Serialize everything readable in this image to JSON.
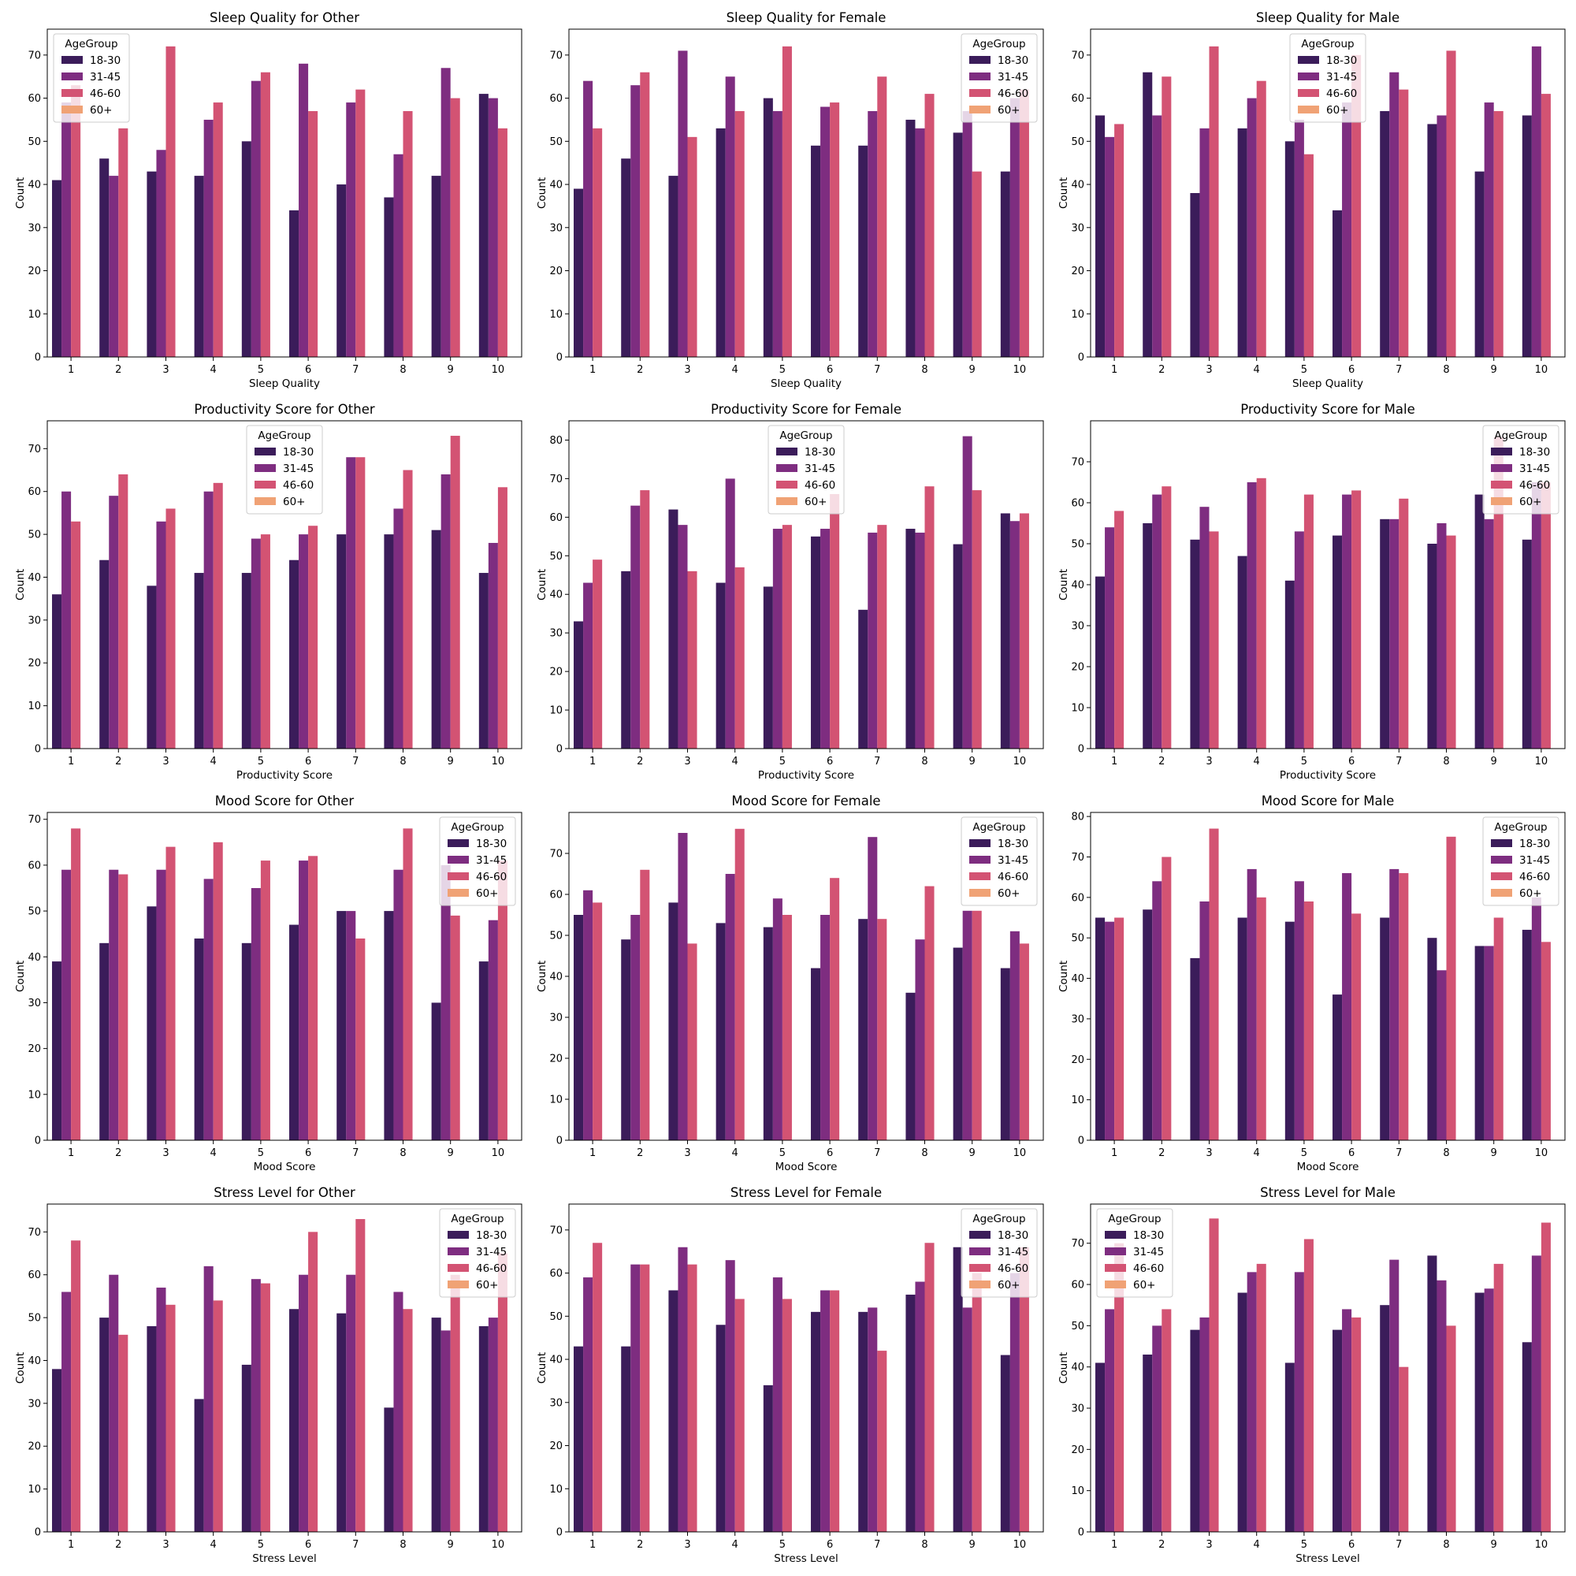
{
  "palette": {
    "18-30": "#3b1c5a",
    "31-45": "#7e2d80",
    "46-60": "#d35373",
    "60+": "#f0a275"
  },
  "legend_title": "AgeGroup",
  "age_groups": [
    "18-30",
    "31-45",
    "46-60",
    "60+"
  ],
  "chart_data": [
    {
      "type": "bar",
      "title": "Sleep Quality for Other",
      "xlabel": "Sleep Quality",
      "ylabel": "Count",
      "categories": [
        "1",
        "2",
        "3",
        "4",
        "5",
        "6",
        "7",
        "8",
        "9",
        "10"
      ],
      "ylim": [
        0,
        76
      ],
      "yticks": [
        0,
        10,
        20,
        30,
        40,
        50,
        60,
        70
      ],
      "legend": "top-left",
      "series": [
        {
          "name": "18-30",
          "values": [
            41,
            46,
            43,
            42,
            50,
            34,
            40,
            37,
            42,
            61
          ]
        },
        {
          "name": "31-45",
          "values": [
            59,
            42,
            48,
            55,
            64,
            68,
            59,
            47,
            67,
            60
          ]
        },
        {
          "name": "46-60",
          "values": [
            63,
            53,
            72,
            59,
            66,
            57,
            62,
            57,
            60,
            53
          ]
        },
        {
          "name": "60+",
          "values": [
            0,
            0,
            0,
            0,
            0,
            0,
            0,
            0,
            0,
            0
          ]
        }
      ]
    },
    {
      "type": "bar",
      "title": "Sleep Quality for Female",
      "xlabel": "Sleep Quality",
      "ylabel": "Count",
      "categories": [
        "1",
        "2",
        "3",
        "4",
        "5",
        "6",
        "7",
        "8",
        "9",
        "10"
      ],
      "ylim": [
        0,
        76
      ],
      "yticks": [
        0,
        10,
        20,
        30,
        40,
        50,
        60,
        70
      ],
      "legend": "top-right",
      "series": [
        {
          "name": "18-30",
          "values": [
            39,
            46,
            42,
            53,
            60,
            49,
            49,
            55,
            52,
            43
          ]
        },
        {
          "name": "31-45",
          "values": [
            64,
            63,
            71,
            65,
            57,
            58,
            57,
            53,
            57,
            60
          ]
        },
        {
          "name": "46-60",
          "values": [
            53,
            66,
            51,
            57,
            72,
            59,
            65,
            61,
            43,
            62
          ]
        },
        {
          "name": "60+",
          "values": [
            0,
            0,
            0,
            0,
            0,
            0,
            0,
            0,
            0,
            0
          ]
        }
      ]
    },
    {
      "type": "bar",
      "title": "Sleep Quality for Male",
      "xlabel": "Sleep Quality",
      "ylabel": "Count",
      "categories": [
        "1",
        "2",
        "3",
        "4",
        "5",
        "6",
        "7",
        "8",
        "9",
        "10"
      ],
      "ylim": [
        0,
        76
      ],
      "yticks": [
        0,
        10,
        20,
        30,
        40,
        50,
        60,
        70
      ],
      "legend": "top-center",
      "series": [
        {
          "name": "18-30",
          "values": [
            56,
            66,
            38,
            53,
            50,
            34,
            57,
            54,
            43,
            56
          ]
        },
        {
          "name": "31-45",
          "values": [
            51,
            56,
            53,
            60,
            55,
            59,
            66,
            56,
            59,
            72
          ]
        },
        {
          "name": "46-60",
          "values": [
            54,
            65,
            72,
            64,
            47,
            70,
            62,
            71,
            57,
            61
          ]
        },
        {
          "name": "60+",
          "values": [
            0,
            0,
            0,
            0,
            0,
            0,
            0,
            0,
            0,
            0
          ]
        }
      ]
    },
    {
      "type": "bar",
      "title": "Productivity Score for Other",
      "xlabel": "Productivity Score",
      "ylabel": "Count",
      "categories": [
        "1",
        "2",
        "3",
        "4",
        "5",
        "6",
        "7",
        "8",
        "9",
        "10"
      ],
      "ylim": [
        0,
        76.5
      ],
      "yticks": [
        0,
        10,
        20,
        30,
        40,
        50,
        60,
        70
      ],
      "legend": "top-center",
      "series": [
        {
          "name": "18-30",
          "values": [
            36,
            44,
            38,
            41,
            41,
            44,
            50,
            50,
            51,
            41
          ]
        },
        {
          "name": "31-45",
          "values": [
            60,
            59,
            53,
            60,
            49,
            50,
            68,
            56,
            64,
            48
          ]
        },
        {
          "name": "46-60",
          "values": [
            53,
            64,
            56,
            62,
            50,
            52,
            68,
            65,
            73,
            61
          ]
        },
        {
          "name": "60+",
          "values": [
            0,
            0,
            0,
            0,
            0,
            0,
            0,
            0,
            0,
            0
          ]
        }
      ]
    },
    {
      "type": "bar",
      "title": "Productivity Score for Female",
      "xlabel": "Productivity Score",
      "ylabel": "Count",
      "categories": [
        "1",
        "2",
        "3",
        "4",
        "5",
        "6",
        "7",
        "8",
        "9",
        "10"
      ],
      "ylim": [
        0,
        85
      ],
      "yticks": [
        0,
        10,
        20,
        30,
        40,
        50,
        60,
        70,
        80
      ],
      "legend": "top-center",
      "series": [
        {
          "name": "18-30",
          "values": [
            33,
            46,
            62,
            43,
            42,
            55,
            36,
            57,
            53,
            61
          ]
        },
        {
          "name": "31-45",
          "values": [
            43,
            63,
            58,
            70,
            57,
            57,
            56,
            56,
            81,
            59
          ]
        },
        {
          "name": "46-60",
          "values": [
            49,
            67,
            46,
            47,
            58,
            66,
            58,
            68,
            67,
            61
          ]
        },
        {
          "name": "60+",
          "values": [
            0,
            0,
            0,
            0,
            0,
            0,
            0,
            0,
            0,
            0
          ]
        }
      ]
    },
    {
      "type": "bar",
      "title": "Productivity Score for Male",
      "xlabel": "Productivity Score",
      "ylabel": "Count",
      "categories": [
        "1",
        "2",
        "3",
        "4",
        "5",
        "6",
        "7",
        "8",
        "9",
        "10"
      ],
      "ylim": [
        0,
        80
      ],
      "yticks": [
        0,
        10,
        20,
        30,
        40,
        50,
        60,
        70
      ],
      "legend": "top-right",
      "series": [
        {
          "name": "18-30",
          "values": [
            42,
            55,
            51,
            47,
            41,
            52,
            56,
            50,
            62,
            51
          ]
        },
        {
          "name": "31-45",
          "values": [
            54,
            62,
            59,
            65,
            53,
            62,
            56,
            55,
            56,
            65
          ]
        },
        {
          "name": "46-60",
          "values": [
            58,
            64,
            53,
            66,
            62,
            63,
            61,
            52,
            76,
            65
          ]
        },
        {
          "name": "60+",
          "values": [
            0,
            0,
            0,
            0,
            0,
            0,
            0,
            0,
            0,
            0
          ]
        }
      ]
    },
    {
      "type": "bar",
      "title": "Mood Score for Other",
      "xlabel": "Mood Score",
      "ylabel": "Count",
      "categories": [
        "1",
        "2",
        "3",
        "4",
        "5",
        "6",
        "7",
        "8",
        "9",
        "10"
      ],
      "ylim": [
        0,
        71.5
      ],
      "yticks": [
        0,
        10,
        20,
        30,
        40,
        50,
        60,
        70
      ],
      "legend": "top-right",
      "series": [
        {
          "name": "18-30",
          "values": [
            39,
            43,
            51,
            44,
            43,
            47,
            50,
            50,
            30,
            39
          ]
        },
        {
          "name": "31-45",
          "values": [
            59,
            59,
            59,
            57,
            55,
            61,
            50,
            59,
            60,
            48
          ]
        },
        {
          "name": "46-60",
          "values": [
            68,
            58,
            64,
            65,
            61,
            62,
            44,
            68,
            49,
            61
          ]
        },
        {
          "name": "60+",
          "values": [
            0,
            0,
            0,
            0,
            0,
            0,
            0,
            0,
            0,
            0
          ]
        }
      ]
    },
    {
      "type": "bar",
      "title": "Mood Score for Female",
      "xlabel": "Mood Score",
      "ylabel": "Count",
      "categories": [
        "1",
        "2",
        "3",
        "4",
        "5",
        "6",
        "7",
        "8",
        "9",
        "10"
      ],
      "ylim": [
        0,
        80
      ],
      "yticks": [
        0,
        10,
        20,
        30,
        40,
        50,
        60,
        70
      ],
      "legend": "top-right",
      "series": [
        {
          "name": "18-30",
          "values": [
            55,
            49,
            58,
            53,
            52,
            42,
            54,
            36,
            47,
            42
          ]
        },
        {
          "name": "31-45",
          "values": [
            61,
            55,
            75,
            65,
            59,
            55,
            74,
            49,
            56,
            51
          ]
        },
        {
          "name": "46-60",
          "values": [
            58,
            66,
            48,
            76,
            55,
            64,
            54,
            62,
            56,
            48
          ]
        },
        {
          "name": "60+",
          "values": [
            0,
            0,
            0,
            0,
            0,
            0,
            0,
            0,
            0,
            0
          ]
        }
      ]
    },
    {
      "type": "bar",
      "title": "Mood Score for Male",
      "xlabel": "Mood Score",
      "ylabel": "Count",
      "categories": [
        "1",
        "2",
        "3",
        "4",
        "5",
        "6",
        "7",
        "8",
        "9",
        "10"
      ],
      "ylim": [
        0,
        81
      ],
      "yticks": [
        0,
        10,
        20,
        30,
        40,
        50,
        60,
        70,
        80
      ],
      "legend": "top-right",
      "series": [
        {
          "name": "18-30",
          "values": [
            55,
            57,
            45,
            55,
            54,
            36,
            55,
            50,
            48,
            52
          ]
        },
        {
          "name": "31-45",
          "values": [
            54,
            64,
            59,
            67,
            64,
            66,
            67,
            42,
            48,
            60
          ]
        },
        {
          "name": "46-60",
          "values": [
            55,
            70,
            77,
            60,
            59,
            56,
            66,
            75,
            55,
            49
          ]
        },
        {
          "name": "60+",
          "values": [
            0,
            0,
            0,
            0,
            0,
            0,
            0,
            0,
            0,
            0
          ]
        }
      ]
    },
    {
      "type": "bar",
      "title": "Stress Level for Other",
      "xlabel": "Stress Level",
      "ylabel": "Count",
      "categories": [
        "1",
        "2",
        "3",
        "4",
        "5",
        "6",
        "7",
        "8",
        "9",
        "10"
      ],
      "ylim": [
        0,
        76.5
      ],
      "yticks": [
        0,
        10,
        20,
        30,
        40,
        50,
        60,
        70
      ],
      "legend": "top-right",
      "series": [
        {
          "name": "18-30",
          "values": [
            38,
            50,
            48,
            31,
            39,
            52,
            51,
            29,
            50,
            48
          ]
        },
        {
          "name": "31-45",
          "values": [
            56,
            60,
            57,
            62,
            59,
            60,
            60,
            56,
            47,
            50
          ]
        },
        {
          "name": "46-60",
          "values": [
            68,
            46,
            53,
            54,
            58,
            70,
            73,
            52,
            60,
            65
          ]
        },
        {
          "name": "60+",
          "values": [
            0,
            0,
            0,
            0,
            0,
            0,
            0,
            0,
            0,
            0
          ]
        }
      ]
    },
    {
      "type": "bar",
      "title": "Stress Level for Female",
      "xlabel": "Stress Level",
      "ylabel": "Count",
      "categories": [
        "1",
        "2",
        "3",
        "4",
        "5",
        "6",
        "7",
        "8",
        "9",
        "10"
      ],
      "ylim": [
        0,
        76
      ],
      "yticks": [
        0,
        10,
        20,
        30,
        40,
        50,
        60,
        70
      ],
      "legend": "top-right",
      "series": [
        {
          "name": "18-30",
          "values": [
            43,
            43,
            56,
            48,
            34,
            51,
            51,
            55,
            66,
            41
          ]
        },
        {
          "name": "31-45",
          "values": [
            59,
            62,
            66,
            63,
            59,
            56,
            52,
            58,
            52,
            60
          ]
        },
        {
          "name": "46-60",
          "values": [
            67,
            62,
            62,
            54,
            54,
            56,
            42,
            67,
            60,
            66
          ]
        },
        {
          "name": "60+",
          "values": [
            0,
            0,
            0,
            0,
            0,
            0,
            0,
            0,
            0,
            0
          ]
        }
      ]
    },
    {
      "type": "bar",
      "title": "Stress Level for Male",
      "xlabel": "Stress Level",
      "ylabel": "Count",
      "categories": [
        "1",
        "2",
        "3",
        "4",
        "5",
        "6",
        "7",
        "8",
        "9",
        "10"
      ],
      "ylim": [
        0,
        79.5
      ],
      "yticks": [
        0,
        10,
        20,
        30,
        40,
        50,
        60,
        70
      ],
      "legend": "top-left",
      "series": [
        {
          "name": "18-30",
          "values": [
            41,
            43,
            49,
            58,
            41,
            49,
            55,
            67,
            58,
            46
          ]
        },
        {
          "name": "31-45",
          "values": [
            54,
            50,
            52,
            63,
            63,
            54,
            66,
            61,
            59,
            67
          ]
        },
        {
          "name": "46-60",
          "values": [
            70,
            54,
            76,
            65,
            71,
            52,
            40,
            50,
            65,
            75
          ]
        },
        {
          "name": "60+",
          "values": [
            0,
            0,
            0,
            0,
            0,
            0,
            0,
            0,
            0,
            0
          ]
        }
      ]
    }
  ]
}
